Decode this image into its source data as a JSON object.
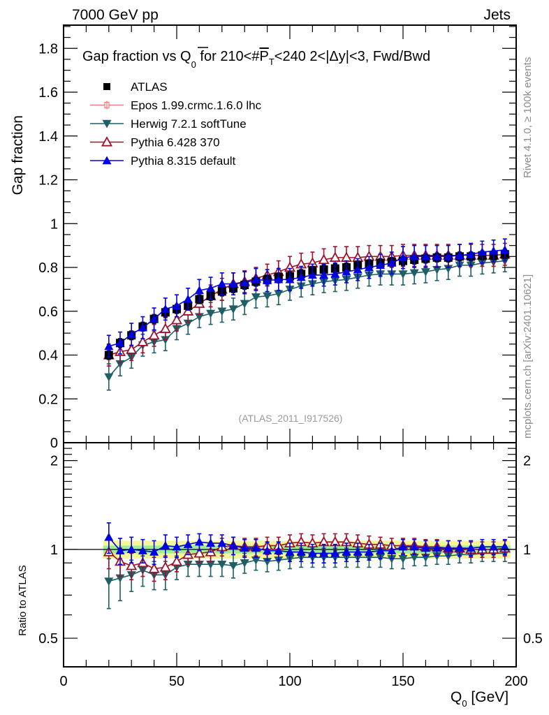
{
  "header": {
    "left_label": "7000 GeV pp",
    "right_label": "Jets"
  },
  "side_labels": {
    "top": "Rivet 4.1.0, ≥ 100k events",
    "bottom": "mcplots.cern.ch [arXiv:2401.10621]"
  },
  "watermark": "(ATLAS_2011_I917526)",
  "colors": {
    "atlas": "#000000",
    "epos": "#f08080",
    "herwig": "#1e5f66",
    "pythia6": "#a0102a",
    "pythia8": "#0000e0",
    "band_inner": "#9af09a",
    "band_outer": "#f5f59a"
  },
  "chart_data": [
    {
      "type": "scatter",
      "panel": "main",
      "title": "Gap fraction vs Q_0 for 210<#P_T<240  2<|Δy|<3, Fwd/Bwd",
      "title_parts": {
        "a": "Gap fraction vs Q",
        "sub": "0",
        "b": " for 210<#",
        "over": "P",
        "sub2": "T",
        "c": "<240  2<|Δy|<3, Fwd/Bwd"
      },
      "xlabel": "Q_0 [GeV]",
      "ylabel": "Gap fraction",
      "xlim": [
        0,
        200
      ],
      "ylim": [
        0,
        1.906
      ],
      "yticks": [
        0,
        0.2,
        0.4,
        0.6,
        0.8,
        1,
        1.2,
        1.4,
        1.6,
        1.8
      ],
      "ytick_labels": [
        "0",
        "0.2",
        "0.4",
        "0.6",
        "0.8",
        "1",
        "1.2",
        "1.4",
        "1.6",
        "1.8"
      ],
      "legend_position": "top-left",
      "x": [
        20,
        25,
        30,
        35,
        40,
        45,
        50,
        55,
        60,
        65,
        70,
        75,
        80,
        85,
        90,
        95,
        100,
        105,
        110,
        115,
        120,
        125,
        130,
        135,
        140,
        145,
        150,
        155,
        160,
        165,
        170,
        175,
        180,
        185,
        190,
        195
      ],
      "series": [
        {
          "name": "ATLAS",
          "key": "atlas",
          "marker": "square",
          "values": [
            0.4,
            0.455,
            0.49,
            0.53,
            0.565,
            0.595,
            0.61,
            0.625,
            0.655,
            0.67,
            0.69,
            0.705,
            0.72,
            0.735,
            0.745,
            0.755,
            0.76,
            0.77,
            0.785,
            0.79,
            0.795,
            0.8,
            0.81,
            0.815,
            0.82,
            0.825,
            0.83,
            0.835,
            0.84,
            0.845,
            0.845,
            0.85,
            0.85,
            0.855,
            0.855,
            0.86
          ],
          "errors": [
            0.02,
            0.02,
            0.02,
            0.02,
            0.02,
            0.02,
            0.02,
            0.02,
            0.02,
            0.02,
            0.02,
            0.02,
            0.02,
            0.02,
            0.02,
            0.02,
            0.02,
            0.02,
            0.02,
            0.02,
            0.02,
            0.02,
            0.02,
            0.02,
            0.02,
            0.02,
            0.02,
            0.02,
            0.02,
            0.02,
            0.02,
            0.02,
            0.02,
            0.02,
            0.02,
            0.02
          ]
        },
        {
          "name": "Epos 1.99.crmc.1.6.0 lhc",
          "key": "epos",
          "marker": "open-cross",
          "values": []
        },
        {
          "name": "Herwig 7.2.1 softTune",
          "key": "herwig",
          "marker": "triangle-down",
          "values": [
            0.3,
            0.36,
            0.39,
            0.445,
            0.46,
            0.47,
            0.52,
            0.545,
            0.575,
            0.59,
            0.6,
            0.61,
            0.635,
            0.665,
            0.67,
            0.68,
            0.7,
            0.715,
            0.725,
            0.735,
            0.74,
            0.745,
            0.755,
            0.765,
            0.77,
            0.77,
            0.77,
            0.775,
            0.78,
            0.79,
            0.795,
            0.81,
            0.81,
            0.82,
            0.825,
            0.83
          ],
          "errors": [
            0.06,
            0.055,
            0.05,
            0.05,
            0.05,
            0.05,
            0.05,
            0.05,
            0.05,
            0.05,
            0.05,
            0.05,
            0.05,
            0.05,
            0.05,
            0.05,
            0.05,
            0.05,
            0.05,
            0.05,
            0.05,
            0.05,
            0.05,
            0.05,
            0.05,
            0.05,
            0.05,
            0.05,
            0.05,
            0.05,
            0.05,
            0.05,
            0.05,
            0.05,
            0.05,
            0.05
          ]
        },
        {
          "name": "Pythia 6.428 370",
          "key": "pythia6",
          "marker": "triangle-up-open",
          "values": [
            0.4,
            0.415,
            0.425,
            0.46,
            0.49,
            0.52,
            0.56,
            0.6,
            0.635,
            0.67,
            0.7,
            0.725,
            0.735,
            0.75,
            0.765,
            0.78,
            0.8,
            0.815,
            0.82,
            0.835,
            0.845,
            0.845,
            0.845,
            0.85,
            0.85,
            0.85,
            0.855,
            0.855,
            0.855,
            0.855,
            0.855,
            0.855,
            0.855,
            0.855,
            0.855,
            0.86
          ],
          "errors": [
            0.05,
            0.05,
            0.05,
            0.05,
            0.05,
            0.05,
            0.05,
            0.05,
            0.05,
            0.05,
            0.05,
            0.05,
            0.05,
            0.05,
            0.05,
            0.05,
            0.05,
            0.05,
            0.05,
            0.05,
            0.05,
            0.05,
            0.05,
            0.05,
            0.05,
            0.05,
            0.05,
            0.05,
            0.05,
            0.05,
            0.05,
            0.05,
            0.05,
            0.05,
            0.05,
            0.05
          ]
        },
        {
          "name": "Pythia 8.315 default",
          "key": "pythia8",
          "marker": "triangle-up",
          "values": [
            0.44,
            0.455,
            0.495,
            0.525,
            0.565,
            0.61,
            0.625,
            0.655,
            0.695,
            0.705,
            0.725,
            0.725,
            0.73,
            0.745,
            0.74,
            0.745,
            0.745,
            0.755,
            0.765,
            0.765,
            0.77,
            0.78,
            0.79,
            0.8,
            0.81,
            0.82,
            0.845,
            0.85,
            0.85,
            0.85,
            0.85,
            0.855,
            0.86,
            0.87,
            0.875,
            0.88
          ],
          "errors": [
            0.05,
            0.05,
            0.05,
            0.05,
            0.05,
            0.05,
            0.05,
            0.05,
            0.05,
            0.05,
            0.05,
            0.05,
            0.05,
            0.05,
            0.05,
            0.05,
            0.05,
            0.05,
            0.05,
            0.05,
            0.05,
            0.05,
            0.05,
            0.05,
            0.05,
            0.05,
            0.05,
            0.05,
            0.05,
            0.05,
            0.05,
            0.05,
            0.05,
            0.05,
            0.05,
            0.05
          ]
        }
      ]
    },
    {
      "type": "line",
      "panel": "ratio",
      "ylabel": "Ratio to ATLAS",
      "xlabel": "Q_0 [GeV]",
      "xlim": [
        0,
        200
      ],
      "ylim": [
        0.4,
        2.3
      ],
      "yscale": "log",
      "yticks": [
        0.5,
        1,
        2
      ],
      "ytick_labels": [
        "0.5",
        "1",
        "2"
      ],
      "xticks": [
        0,
        50,
        100,
        150,
        200
      ],
      "xtick_labels": [
        "0",
        "50",
        "100",
        "150",
        "200"
      ],
      "x": [
        20,
        25,
        30,
        35,
        40,
        45,
        50,
        55,
        60,
        65,
        70,
        75,
        80,
        85,
        90,
        95,
        100,
        105,
        110,
        115,
        120,
        125,
        130,
        135,
        140,
        145,
        150,
        155,
        160,
        165,
        170,
        175,
        180,
        185,
        190,
        195
      ],
      "band": {
        "inner": 0.03,
        "outer": 0.07
      },
      "series": [
        {
          "name": "Herwig 7.2.1 softTune",
          "key": "herwig",
          "marker": "triangle-down",
          "values": [
            0.78,
            0.8,
            0.82,
            0.85,
            0.82,
            0.82,
            0.87,
            0.89,
            0.89,
            0.89,
            0.89,
            0.88,
            0.9,
            0.92,
            0.91,
            0.92,
            0.93,
            0.94,
            0.94,
            0.94,
            0.94,
            0.94,
            0.94,
            0.94,
            0.94,
            0.93,
            0.93,
            0.94,
            0.94,
            0.95,
            0.95,
            0.96,
            0.96,
            0.97,
            0.97,
            0.97
          ],
          "errors": [
            0.15,
            0.13,
            0.1,
            0.1,
            0.09,
            0.09,
            0.08,
            0.08,
            0.08,
            0.08,
            0.08,
            0.08,
            0.07,
            0.07,
            0.07,
            0.07,
            0.07,
            0.07,
            0.07,
            0.07,
            0.07,
            0.07,
            0.07,
            0.07,
            0.07,
            0.07,
            0.07,
            0.06,
            0.06,
            0.06,
            0.06,
            0.06,
            0.06,
            0.06,
            0.06,
            0.06
          ]
        },
        {
          "name": "Pythia 6.428 370",
          "key": "pythia6",
          "marker": "triangle-up-open",
          "values": [
            0.98,
            0.91,
            0.88,
            0.9,
            0.86,
            0.87,
            0.91,
            0.96,
            0.97,
            0.98,
            1.02,
            1.03,
            1.02,
            1.02,
            1.03,
            1.03,
            1.05,
            1.06,
            1.05,
            1.06,
            1.06,
            1.06,
            1.05,
            1.04,
            1.04,
            1.03,
            1.03,
            1.03,
            1.02,
            1.02,
            1.01,
            1.01,
            1.0,
            1.0,
            1.0,
            1.01
          ],
          "errors": [
            0.12,
            0.1,
            0.09,
            0.09,
            0.08,
            0.08,
            0.07,
            0.07,
            0.07,
            0.07,
            0.07,
            0.07,
            0.07,
            0.07,
            0.07,
            0.07,
            0.07,
            0.07,
            0.07,
            0.07,
            0.07,
            0.07,
            0.07,
            0.07,
            0.06,
            0.06,
            0.06,
            0.06,
            0.06,
            0.06,
            0.06,
            0.06,
            0.06,
            0.06,
            0.06,
            0.06
          ]
        },
        {
          "name": "Pythia 8.315 default",
          "key": "pythia8",
          "marker": "triangle-up",
          "values": [
            1.1,
            0.99,
            1.0,
            0.99,
            0.98,
            1.03,
            1.02,
            1.04,
            1.06,
            1.05,
            1.05,
            1.03,
            1.01,
            1.01,
            0.99,
            0.99,
            0.98,
            0.98,
            0.97,
            0.97,
            0.97,
            0.98,
            0.98,
            0.98,
            0.99,
            0.99,
            1.02,
            1.02,
            1.01,
            1.01,
            1.01,
            1.01,
            1.01,
            1.02,
            1.02,
            1.02
          ],
          "errors": [
            0.13,
            0.1,
            0.1,
            0.09,
            0.09,
            0.09,
            0.08,
            0.08,
            0.07,
            0.07,
            0.07,
            0.07,
            0.07,
            0.07,
            0.07,
            0.07,
            0.07,
            0.07,
            0.07,
            0.07,
            0.07,
            0.07,
            0.07,
            0.06,
            0.06,
            0.06,
            0.06,
            0.06,
            0.06,
            0.06,
            0.06,
            0.06,
            0.06,
            0.06,
            0.06,
            0.06
          ]
        }
      ]
    }
  ]
}
